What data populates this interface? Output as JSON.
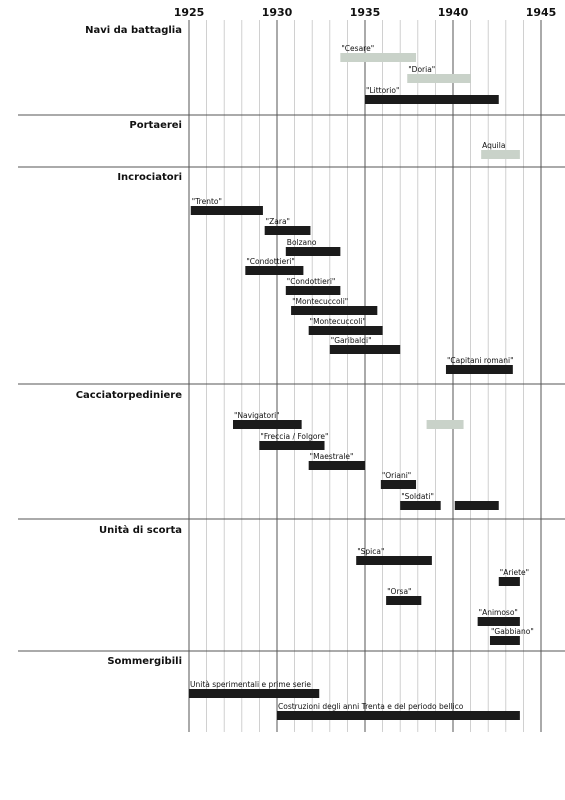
{
  "chart_data": {
    "type": "gantt",
    "x_ticks": [
      1925,
      1930,
      1935,
      1940,
      1945
    ],
    "xlim": [
      1925,
      1945
    ],
    "grid": "vertical lines every year; major lines every 5 years",
    "colors": {
      "active": "#1b1b1b",
      "planned": "#c9d2c9"
    },
    "categories": [
      {
        "label": "Navi da battaglia",
        "bars": [
          {
            "label": "\"Cesare\"",
            "start": 1933.6,
            "end": 1937.9,
            "status": "planned"
          },
          {
            "label": "\"Doria\"",
            "start": 1937.4,
            "end": 1941.0,
            "status": "planned"
          },
          {
            "label": "\"Littorio\"",
            "start": 1935.0,
            "end": 1942.6,
            "status": "active"
          }
        ]
      },
      {
        "label": "Portaerei",
        "bars": [
          {
            "label": "Aquila",
            "start": 1941.6,
            "end": 1943.8,
            "status": "planned"
          }
        ]
      },
      {
        "label": "Incrociatori",
        "bars": [
          {
            "label": "\"Trento\"",
            "start": 1925.1,
            "end": 1929.2,
            "status": "active"
          },
          {
            "label": "\"Zara\"",
            "start": 1929.3,
            "end": 1931.9,
            "status": "active"
          },
          {
            "label": "Bolzano",
            "start": 1930.5,
            "end": 1933.6,
            "status": "active"
          },
          {
            "label": "\"Condottieri\"",
            "start": 1928.2,
            "end": 1931.5,
            "status": "active"
          },
          {
            "label": "\"Condottieri\"",
            "start": 1930.5,
            "end": 1933.6,
            "status": "active"
          },
          {
            "label": "\"Montecuccoli\"",
            "start": 1930.8,
            "end": 1935.7,
            "status": "active"
          },
          {
            "label": "\"Montecuccoli\"",
            "start": 1931.8,
            "end": 1936.0,
            "status": "active"
          },
          {
            "label": "\"Garibaldi\"",
            "start": 1933.0,
            "end": 1937.0,
            "status": "active"
          },
          {
            "label": "\"Capitani romani\"",
            "start": 1939.6,
            "end": 1943.4,
            "status": "active"
          }
        ]
      },
      {
        "label": "Cacciatorpediniere",
        "bars": [
          {
            "label": "\"Navigatori\"",
            "start": 1927.5,
            "end": 1931.4,
            "status": "active"
          },
          {
            "label": "",
            "start": 1938.5,
            "end": 1940.6,
            "status": "planned"
          },
          {
            "label": "\"Freccia / Folgore\"",
            "start": 1929.0,
            "end": 1932.7,
            "status": "active"
          },
          {
            "label": "\"Maestrale\"",
            "start": 1931.8,
            "end": 1935.0,
            "status": "active"
          },
          {
            "label": "\"Oriani\"",
            "start": 1935.9,
            "end": 1937.9,
            "status": "active"
          },
          {
            "label": "\"Soldati\"",
            "start": 1937.0,
            "end": 1939.3,
            "status": "active"
          },
          {
            "label": "",
            "start": 1940.1,
            "end": 1942.6,
            "status": "active"
          }
        ]
      },
      {
        "label": "Unità di scorta",
        "bars": [
          {
            "label": "\"Spica\"",
            "start": 1934.5,
            "end": 1938.8,
            "status": "active"
          },
          {
            "label": "\"Ariete\"",
            "start": 1942.6,
            "end": 1943.8,
            "status": "active"
          },
          {
            "label": "\"Orsa\"",
            "start": 1936.2,
            "end": 1938.2,
            "status": "active"
          },
          {
            "label": "\"Animoso\"",
            "start": 1941.4,
            "end": 1943.8,
            "status": "active"
          },
          {
            "label": "\"Gabbiano\"",
            "start": 1942.1,
            "end": 1943.8,
            "status": "active"
          }
        ]
      },
      {
        "label": "Sommergibili",
        "bars": [
          {
            "label": "Unità sperimentali e prime serie",
            "start": 1925.0,
            "end": 1932.4,
            "status": "active"
          },
          {
            "label": "Costruzioni degli anni Trenta e del periodo bellico",
            "start": 1930.0,
            "end": 1943.8,
            "status": "active"
          }
        ]
      }
    ]
  }
}
